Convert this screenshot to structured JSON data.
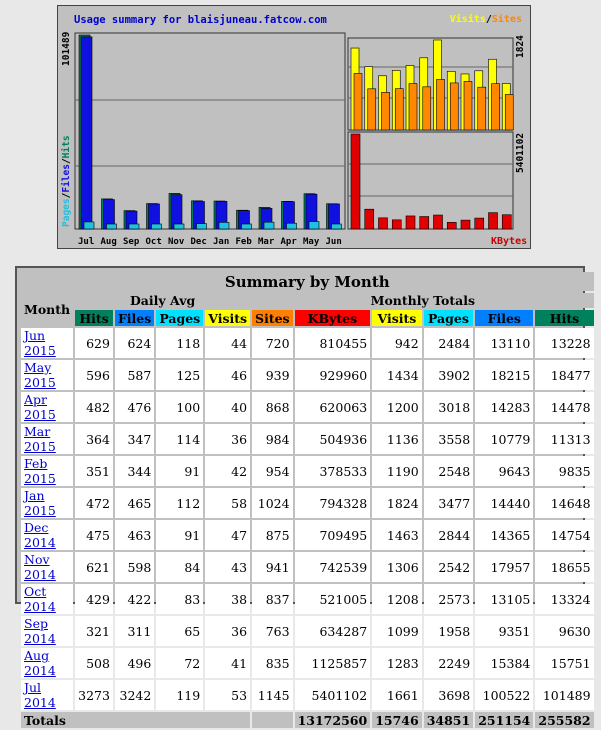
{
  "chart": {
    "title": "Usage summary for blaisjuneau.fatcow.com",
    "legend_visits": "Visits",
    "legend_sep": "/",
    "legend_sites": "Sites",
    "y_left_max": "101489",
    "y_left_label_pages": "Pages",
    "y_left_label_files": "Files",
    "y_left_label_hits": "Hits",
    "y_right_top_max": "1824",
    "y_right_bottom_max": "5401102",
    "kbytes_label": "KBytes",
    "colors": {
      "hits": "#1010e0",
      "files": "#1060d0",
      "pages": "#20c0e0",
      "visits": "#ffff00",
      "sites": "#ff8800",
      "kbytes": "#e00000"
    }
  },
  "chart_data": [
    {
      "type": "bar",
      "title": "",
      "categories": [
        "Jul",
        "Aug",
        "Sep",
        "Oct",
        "Nov",
        "Dec",
        "Jan",
        "Feb",
        "Mar",
        "Apr",
        "May",
        "Jun"
      ],
      "series": [
        {
          "name": "Hits",
          "values": [
            101489,
            15751,
            9630,
            13324,
            18655,
            14754,
            14648,
            9835,
            11313,
            14478,
            18477,
            13228
          ]
        },
        {
          "name": "Files",
          "values": [
            100522,
            15384,
            9351,
            13105,
            17957,
            14365,
            14440,
            9643,
            10779,
            14283,
            18215,
            13110
          ]
        },
        {
          "name": "Pages",
          "values": [
            3698,
            2249,
            1958,
            2573,
            2542,
            2844,
            3477,
            2548,
            3558,
            3018,
            3902,
            2484
          ]
        }
      ],
      "ylim": [
        0,
        101489
      ]
    },
    {
      "type": "bar",
      "title": "",
      "categories": [
        "Jul",
        "Aug",
        "Sep",
        "Oct",
        "Nov",
        "Dec",
        "Jan",
        "Feb",
        "Mar",
        "Apr",
        "May",
        "Jun"
      ],
      "series": [
        {
          "name": "Visits",
          "values": [
            1661,
            1283,
            1099,
            1208,
            1306,
            1463,
            1824,
            1190,
            1136,
            1200,
            1434,
            942
          ]
        },
        {
          "name": "Sites",
          "values": [
            1145,
            835,
            763,
            837,
            941,
            875,
            1024,
            954,
            984,
            868,
            939,
            720
          ]
        }
      ],
      "ylim": [
        0,
        1824
      ]
    },
    {
      "type": "bar",
      "title": "",
      "categories": [
        "Jul",
        "Aug",
        "Sep",
        "Oct",
        "Nov",
        "Dec",
        "Jan",
        "Feb",
        "Mar",
        "Apr",
        "May",
        "Jun"
      ],
      "series": [
        {
          "name": "KBytes",
          "values": [
            5401102,
            1125857,
            634287,
            521005,
            742539,
            709495,
            794328,
            378533,
            504936,
            620063,
            929960,
            810455
          ]
        }
      ],
      "ylim": [
        0,
        5401102
      ]
    }
  ],
  "table": {
    "title": "Summary by Month",
    "month_header": "Month",
    "daily_avg_header": "Daily Avg",
    "monthly_totals_header": "Monthly Totals",
    "columns": {
      "hits": "Hits",
      "files": "Files",
      "pages": "Pages",
      "visits": "Visits",
      "sites": "Sites",
      "kbytes": "KBytes"
    },
    "rows": [
      {
        "month": "Jun 2015",
        "d_hits": "629",
        "d_files": "624",
        "d_pages": "118",
        "d_visits": "44",
        "sites": "720",
        "kbytes": "810455",
        "visits": "942",
        "pages": "2484",
        "files": "13110",
        "hits": "13228"
      },
      {
        "month": "May 2015",
        "d_hits": "596",
        "d_files": "587",
        "d_pages": "125",
        "d_visits": "46",
        "sites": "939",
        "kbytes": "929960",
        "visits": "1434",
        "pages": "3902",
        "files": "18215",
        "hits": "18477"
      },
      {
        "month": "Apr 2015",
        "d_hits": "482",
        "d_files": "476",
        "d_pages": "100",
        "d_visits": "40",
        "sites": "868",
        "kbytes": "620063",
        "visits": "1200",
        "pages": "3018",
        "files": "14283",
        "hits": "14478"
      },
      {
        "month": "Mar 2015",
        "d_hits": "364",
        "d_files": "347",
        "d_pages": "114",
        "d_visits": "36",
        "sites": "984",
        "kbytes": "504936",
        "visits": "1136",
        "pages": "3558",
        "files": "10779",
        "hits": "11313"
      },
      {
        "month": "Feb 2015",
        "d_hits": "351",
        "d_files": "344",
        "d_pages": "91",
        "d_visits": "42",
        "sites": "954",
        "kbytes": "378533",
        "visits": "1190",
        "pages": "2548",
        "files": "9643",
        "hits": "9835"
      },
      {
        "month": "Jan 2015",
        "d_hits": "472",
        "d_files": "465",
        "d_pages": "112",
        "d_visits": "58",
        "sites": "1024",
        "kbytes": "794328",
        "visits": "1824",
        "pages": "3477",
        "files": "14440",
        "hits": "14648"
      },
      {
        "month": "Dec 2014",
        "d_hits": "475",
        "d_files": "463",
        "d_pages": "91",
        "d_visits": "47",
        "sites": "875",
        "kbytes": "709495",
        "visits": "1463",
        "pages": "2844",
        "files": "14365",
        "hits": "14754"
      },
      {
        "month": "Nov 2014",
        "d_hits": "621",
        "d_files": "598",
        "d_pages": "84",
        "d_visits": "43",
        "sites": "941",
        "kbytes": "742539",
        "visits": "1306",
        "pages": "2542",
        "files": "17957",
        "hits": "18655"
      },
      {
        "month": "Oct 2014",
        "d_hits": "429",
        "d_files": "422",
        "d_pages": "83",
        "d_visits": "38",
        "sites": "837",
        "kbytes": "521005",
        "visits": "1208",
        "pages": "2573",
        "files": "13105",
        "hits": "13324"
      },
      {
        "month": "Sep 2014",
        "d_hits": "321",
        "d_files": "311",
        "d_pages": "65",
        "d_visits": "36",
        "sites": "763",
        "kbytes": "634287",
        "visits": "1099",
        "pages": "1958",
        "files": "9351",
        "hits": "9630"
      },
      {
        "month": "Aug 2014",
        "d_hits": "508",
        "d_files": "496",
        "d_pages": "72",
        "d_visits": "41",
        "sites": "835",
        "kbytes": "1125857",
        "visits": "1283",
        "pages": "2249",
        "files": "15384",
        "hits": "15751"
      },
      {
        "month": "Jul 2014",
        "d_hits": "3273",
        "d_files": "3242",
        "d_pages": "119",
        "d_visits": "53",
        "sites": "1145",
        "kbytes": "5401102",
        "visits": "1661",
        "pages": "3698",
        "files": "100522",
        "hits": "101489"
      }
    ],
    "totals": {
      "label": "Totals",
      "kbytes": "13172560",
      "visits": "15746",
      "pages": "34851",
      "files": "251154",
      "hits": "255582"
    },
    "colors": {
      "hits": "#00805c",
      "files": "#0080ff",
      "pages": "#00e0ff",
      "visits": "#ffff00",
      "sites": "#ff8000",
      "kbytes": "#ff0000"
    }
  }
}
